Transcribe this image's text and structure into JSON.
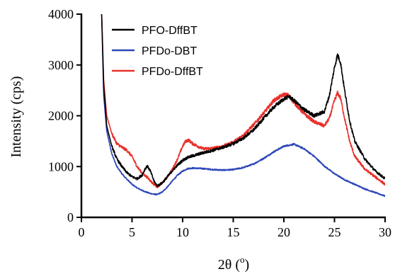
{
  "chart_data": {
    "type": "line",
    "title": "",
    "xlabel": "2θ (°)",
    "xlabel_parts": {
      "main": "2θ (",
      "sup": "o",
      "close": ")"
    },
    "ylabel": "Intensity (cps)",
    "xlim": [
      0,
      30
    ],
    "ylim": [
      0,
      4000
    ],
    "xticks": [
      0,
      5,
      10,
      15,
      20,
      25,
      30
    ],
    "yticks": [
      0,
      1000,
      2000,
      3000,
      4000
    ],
    "grid": false,
    "legend_position": "top-left",
    "series": [
      {
        "name": "PFO-DffBT",
        "color": "#000000",
        "noise": 55,
        "points": [
          [
            2.0,
            4000
          ],
          [
            2.2,
            2600
          ],
          [
            2.5,
            1800
          ],
          [
            3,
            1400
          ],
          [
            3.5,
            1150
          ],
          [
            4,
            1000
          ],
          [
            4.5,
            880
          ],
          [
            5,
            800
          ],
          [
            5.5,
            760
          ],
          [
            6,
            830
          ],
          [
            6.3,
            960
          ],
          [
            6.5,
            1010
          ],
          [
            6.8,
            920
          ],
          [
            7.2,
            700
          ],
          [
            7.5,
            620
          ],
          [
            8,
            680
          ],
          [
            8.5,
            800
          ],
          [
            9,
            920
          ],
          [
            9.5,
            1030
          ],
          [
            10,
            1120
          ],
          [
            10.5,
            1180
          ],
          [
            11,
            1210
          ],
          [
            12,
            1270
          ],
          [
            13,
            1320
          ],
          [
            14,
            1380
          ],
          [
            15,
            1450
          ],
          [
            16,
            1560
          ],
          [
            17,
            1720
          ],
          [
            18,
            1950
          ],
          [
            19,
            2170
          ],
          [
            20,
            2330
          ],
          [
            20.5,
            2380
          ],
          [
            21,
            2300
          ],
          [
            22,
            2120
          ],
          [
            23,
            2000
          ],
          [
            24,
            2080
          ],
          [
            24.5,
            2400
          ],
          [
            25,
            2950
          ],
          [
            25.3,
            3200
          ],
          [
            25.6,
            3050
          ],
          [
            26,
            2500
          ],
          [
            26.5,
            1900
          ],
          [
            27,
            1500
          ],
          [
            28,
            1150
          ],
          [
            29,
            920
          ],
          [
            30,
            760
          ]
        ]
      },
      {
        "name": "PFDo-DBT",
        "color": "#2e47b8",
        "noise": 30,
        "points": [
          [
            2.0,
            4000
          ],
          [
            2.2,
            2400
          ],
          [
            2.5,
            1700
          ],
          [
            3,
            1250
          ],
          [
            3.5,
            1000
          ],
          [
            4,
            860
          ],
          [
            4.5,
            750
          ],
          [
            5,
            650
          ],
          [
            5.5,
            580
          ],
          [
            6,
            530
          ],
          [
            6.5,
            490
          ],
          [
            7,
            460
          ],
          [
            7.5,
            450
          ],
          [
            8,
            500
          ],
          [
            8.5,
            600
          ],
          [
            9,
            720
          ],
          [
            9.5,
            830
          ],
          [
            10,
            910
          ],
          [
            10.5,
            960
          ],
          [
            11,
            970
          ],
          [
            12,
            960
          ],
          [
            13,
            940
          ],
          [
            14,
            930
          ],
          [
            15,
            940
          ],
          [
            16,
            980
          ],
          [
            17,
            1050
          ],
          [
            18,
            1160
          ],
          [
            19,
            1290
          ],
          [
            20,
            1400
          ],
          [
            21,
            1440
          ],
          [
            22,
            1350
          ],
          [
            23,
            1200
          ],
          [
            24,
            1010
          ],
          [
            25,
            860
          ],
          [
            26,
            740
          ],
          [
            27,
            650
          ],
          [
            28,
            560
          ],
          [
            29,
            490
          ],
          [
            30,
            420
          ]
        ]
      },
      {
        "name": "PFDo-DffBT",
        "color": "#e8312b",
        "noise": 55,
        "points": [
          [
            2.0,
            4000
          ],
          [
            2.2,
            2700
          ],
          [
            2.5,
            2000
          ],
          [
            3,
            1650
          ],
          [
            3.5,
            1450
          ],
          [
            4,
            1380
          ],
          [
            4.5,
            1320
          ],
          [
            5,
            1200
          ],
          [
            5.5,
            1000
          ],
          [
            6,
            870
          ],
          [
            6.5,
            790
          ],
          [
            7,
            680
          ],
          [
            7.5,
            600
          ],
          [
            8,
            680
          ],
          [
            8.5,
            800
          ],
          [
            9,
            950
          ],
          [
            9.5,
            1150
          ],
          [
            10,
            1400
          ],
          [
            10.3,
            1500
          ],
          [
            10.6,
            1520
          ],
          [
            11,
            1450
          ],
          [
            12,
            1350
          ],
          [
            13,
            1360
          ],
          [
            14,
            1400
          ],
          [
            15,
            1480
          ],
          [
            16,
            1620
          ],
          [
            17,
            1820
          ],
          [
            18,
            2050
          ],
          [
            19,
            2300
          ],
          [
            20,
            2420
          ],
          [
            20.5,
            2400
          ],
          [
            21,
            2260
          ],
          [
            22,
            2040
          ],
          [
            23,
            1880
          ],
          [
            24,
            1800
          ],
          [
            24.5,
            1950
          ],
          [
            25,
            2300
          ],
          [
            25.3,
            2450
          ],
          [
            25.6,
            2350
          ],
          [
            26,
            1950
          ],
          [
            26.5,
            1500
          ],
          [
            27,
            1200
          ],
          [
            28,
            950
          ],
          [
            29,
            800
          ],
          [
            30,
            650
          ]
        ]
      }
    ]
  }
}
